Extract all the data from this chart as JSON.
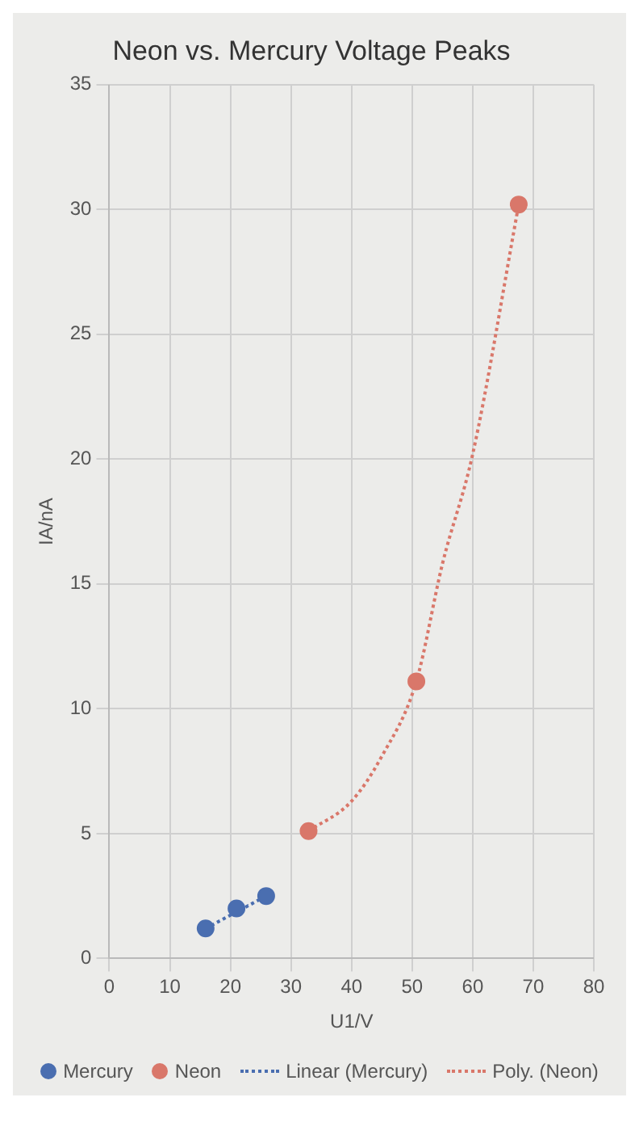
{
  "chart_data": {
    "type": "scatter",
    "title": "Neon vs. Mercury Voltage Peaks",
    "xlabel": "U1/V",
    "ylabel": "IA/nA",
    "xlim": [
      0,
      80
    ],
    "xticks": [
      0,
      10,
      20,
      30,
      40,
      50,
      60,
      70,
      80
    ],
    "ylim": [
      0,
      35
    ],
    "yticks": [
      0,
      5,
      10,
      15,
      20,
      25,
      30,
      35
    ],
    "grid": true,
    "legend": "bottom",
    "marker": "circle",
    "series": [
      {
        "name": "Mercury",
        "color": "#4a6eb0",
        "x": [
          15.9,
          21.0,
          25.9
        ],
        "values": [
          1.2,
          2.0,
          2.5
        ]
      },
      {
        "name": "Neon",
        "color": "#d9776a",
        "x": [
          32.9,
          50.7,
          67.6
        ],
        "values": [
          5.1,
          11.1,
          30.2
        ]
      },
      {
        "name": "Linear (Mercury)",
        "type": "line",
        "color": "#4a6eb0",
        "line_style": "dotted",
        "marker": "none",
        "x": [
          15.9,
          25.9
        ],
        "values": [
          1.2,
          2.5
        ]
      },
      {
        "name": "Poly. (Neon)",
        "type": "line",
        "color": "#d9776a",
        "line_style": "dotted",
        "marker": "none",
        "x": [
          32.9,
          40,
          45,
          50.7,
          55,
          60,
          67.6
        ],
        "values": [
          5.1,
          6.3,
          8.1,
          11.1,
          15.8,
          20.2,
          30.2
        ]
      }
    ]
  }
}
